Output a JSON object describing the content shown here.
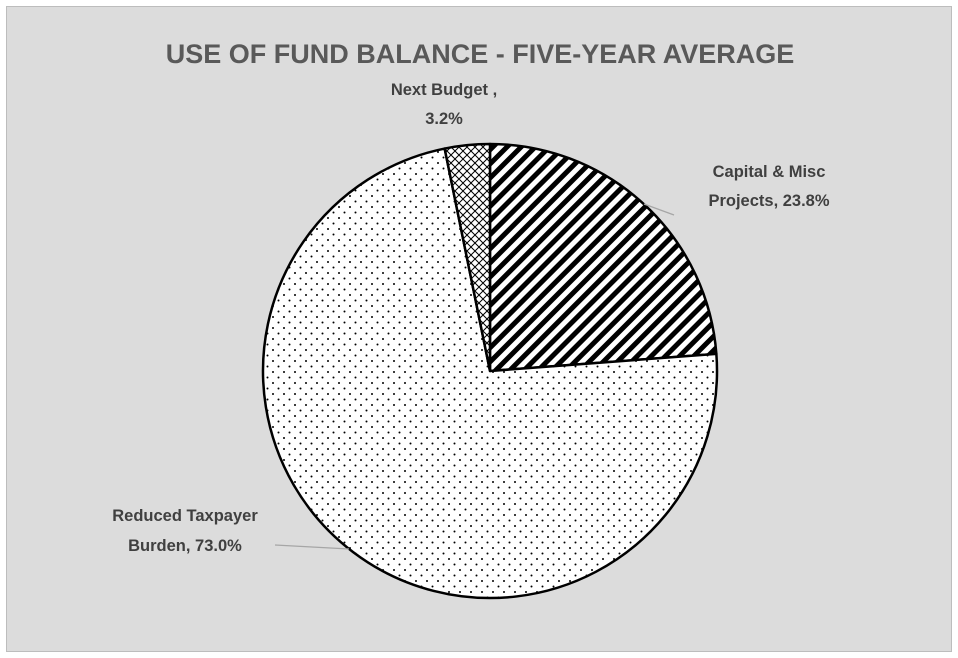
{
  "chart_data": {
    "type": "pie",
    "title": "USE OF FUND BALANCE - FIVE-YEAR AVERAGE",
    "slices": [
      {
        "label": "Capital & Misc Projects",
        "value": 23.8,
        "display": "23.8%",
        "pattern": "diagonal-stripes"
      },
      {
        "label": "Reduced Taxpayer Burden",
        "value": 73.0,
        "display": "73.0%",
        "pattern": "dots"
      },
      {
        "label": "Next Budget",
        "value": 3.2,
        "display": "3.2%",
        "pattern": "crosshatch"
      }
    ],
    "data_labels": [
      {
        "line1": "Capital & Misc",
        "line2": "Projects, 23.8%"
      },
      {
        "line1": "Reduced Taxpayer",
        "line2": "Burden, 73.0%"
      },
      {
        "line1": "Next Budget ,",
        "line2": "3.2%"
      }
    ],
    "start_angle": "12 o'clock",
    "direction": "clockwise",
    "legend": "none",
    "colors": {
      "background": "#dcdcdc",
      "slice_fill": "#ffffff",
      "outline": "#000000",
      "title": "#595959",
      "label": "#404040"
    }
  }
}
